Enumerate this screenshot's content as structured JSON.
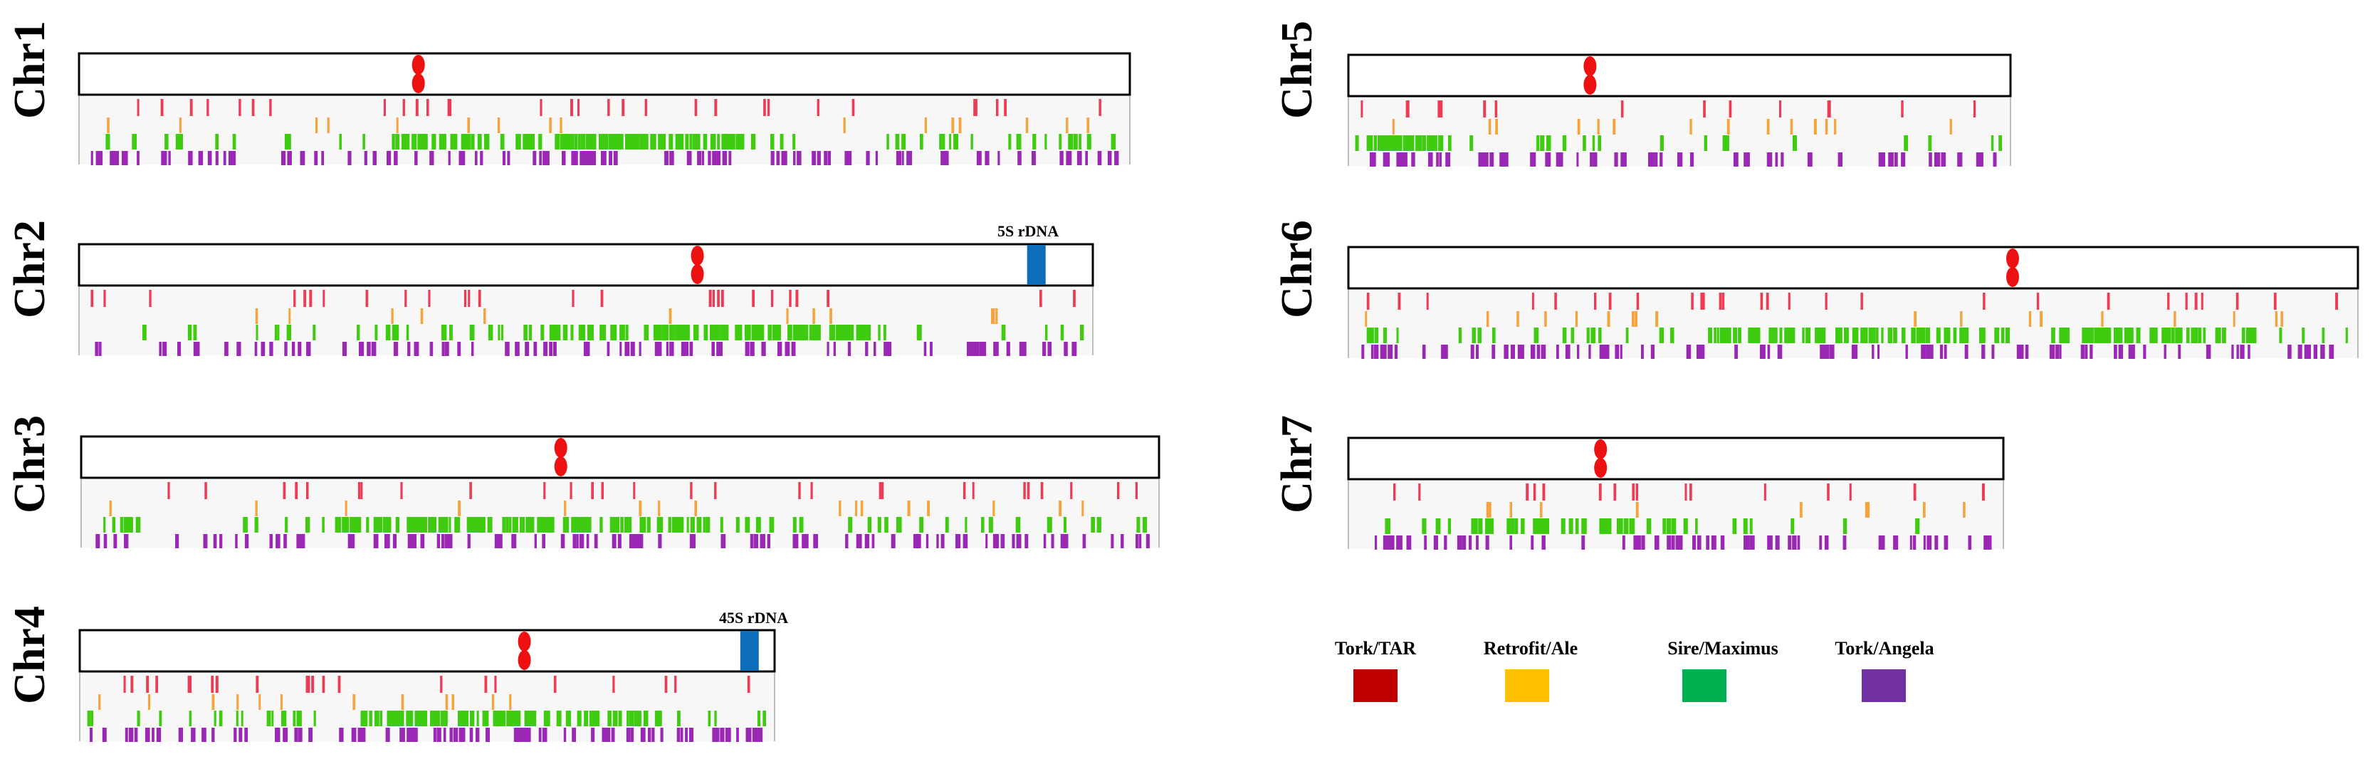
{
  "figure": {
    "chromosomes": [
      {
        "id": "chr1",
        "label": "Chr1",
        "rdna": null
      },
      {
        "id": "chr2",
        "label": "Chr2",
        "rdna": "5S rDNA"
      },
      {
        "id": "chr3",
        "label": "Chr3",
        "rdna": null
      },
      {
        "id": "chr4",
        "label": "Chr4",
        "rdna": "45S rDNA"
      },
      {
        "id": "chr5",
        "label": "Chr5",
        "rdna": null
      },
      {
        "id": "chr6",
        "label": "Chr6",
        "rdna": null
      },
      {
        "id": "chr7",
        "label": "Chr7",
        "rdna": null
      }
    ],
    "legend": [
      {
        "id": "tar",
        "label": "Tork/TAR",
        "color": "#c00000"
      },
      {
        "id": "ale",
        "label": "Retrofit/Ale",
        "color": "#ffc000"
      },
      {
        "id": "maximus",
        "label": "Sire/Maximus",
        "color": "#00b050"
      },
      {
        "id": "angela",
        "label": "Tork/Angela",
        "color": "#7030a0"
      }
    ],
    "track_colors": {
      "tar": "#ee3b55",
      "ale": "#f5a33a",
      "maximus": "#3fcc10",
      "angela": "#9b28b4",
      "centromere": "#ee1111",
      "rdna": "#0e6db8",
      "track_bg": "#f7f7f7"
    }
  }
}
